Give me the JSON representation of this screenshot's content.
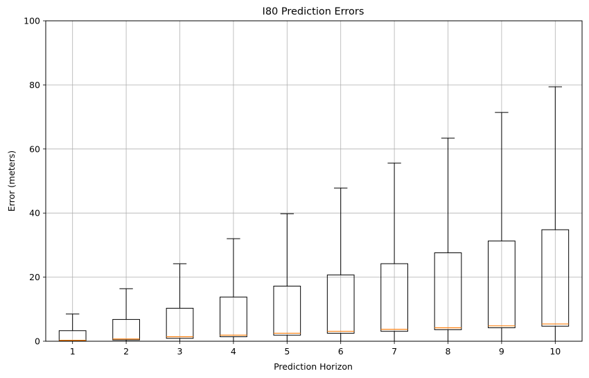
{
  "chart_data": {
    "type": "box",
    "title": "I80 Prediction Errors",
    "xlabel": "Prediction Horizon",
    "ylabel": "Error (meters)",
    "ylim": [
      0,
      100
    ],
    "yticks": [
      0,
      20,
      40,
      60,
      80,
      100
    ],
    "grid": true,
    "categories": [
      "1",
      "2",
      "3",
      "4",
      "5",
      "6",
      "7",
      "8",
      "9",
      "10"
    ],
    "boxes": [
      {
        "whisker_low": 0,
        "q1": 0.1,
        "median": 0.3,
        "q3": 3.3,
        "whisker_high": 8.5
      },
      {
        "whisker_low": 0,
        "q1": 0.4,
        "median": 0.7,
        "q3": 6.8,
        "whisker_high": 16.4
      },
      {
        "whisker_low": 0,
        "q1": 0.9,
        "median": 1.4,
        "q3": 10.3,
        "whisker_high": 24.2
      },
      {
        "whisker_low": 0,
        "q1": 1.4,
        "median": 1.9,
        "q3": 13.8,
        "whisker_high": 32.0
      },
      {
        "whisker_low": 0,
        "q1": 1.9,
        "median": 2.5,
        "q3": 17.2,
        "whisker_high": 39.8
      },
      {
        "whisker_low": 0,
        "q1": 2.5,
        "median": 3.1,
        "q3": 20.7,
        "whisker_high": 47.8
      },
      {
        "whisker_low": 0,
        "q1": 3.1,
        "median": 3.7,
        "q3": 24.2,
        "whisker_high": 55.6
      },
      {
        "whisker_low": 0,
        "q1": 3.6,
        "median": 4.2,
        "q3": 27.6,
        "whisker_high": 63.4
      },
      {
        "whisker_low": 0,
        "q1": 4.2,
        "median": 4.8,
        "q3": 31.3,
        "whisker_high": 71.4
      },
      {
        "whisker_low": 0,
        "q1": 4.7,
        "median": 5.4,
        "q3": 34.8,
        "whisker_high": 79.4
      }
    ],
    "colors": {
      "box": "#000000",
      "median": "#ff7f0e",
      "grid": "#b0b0b0"
    }
  }
}
